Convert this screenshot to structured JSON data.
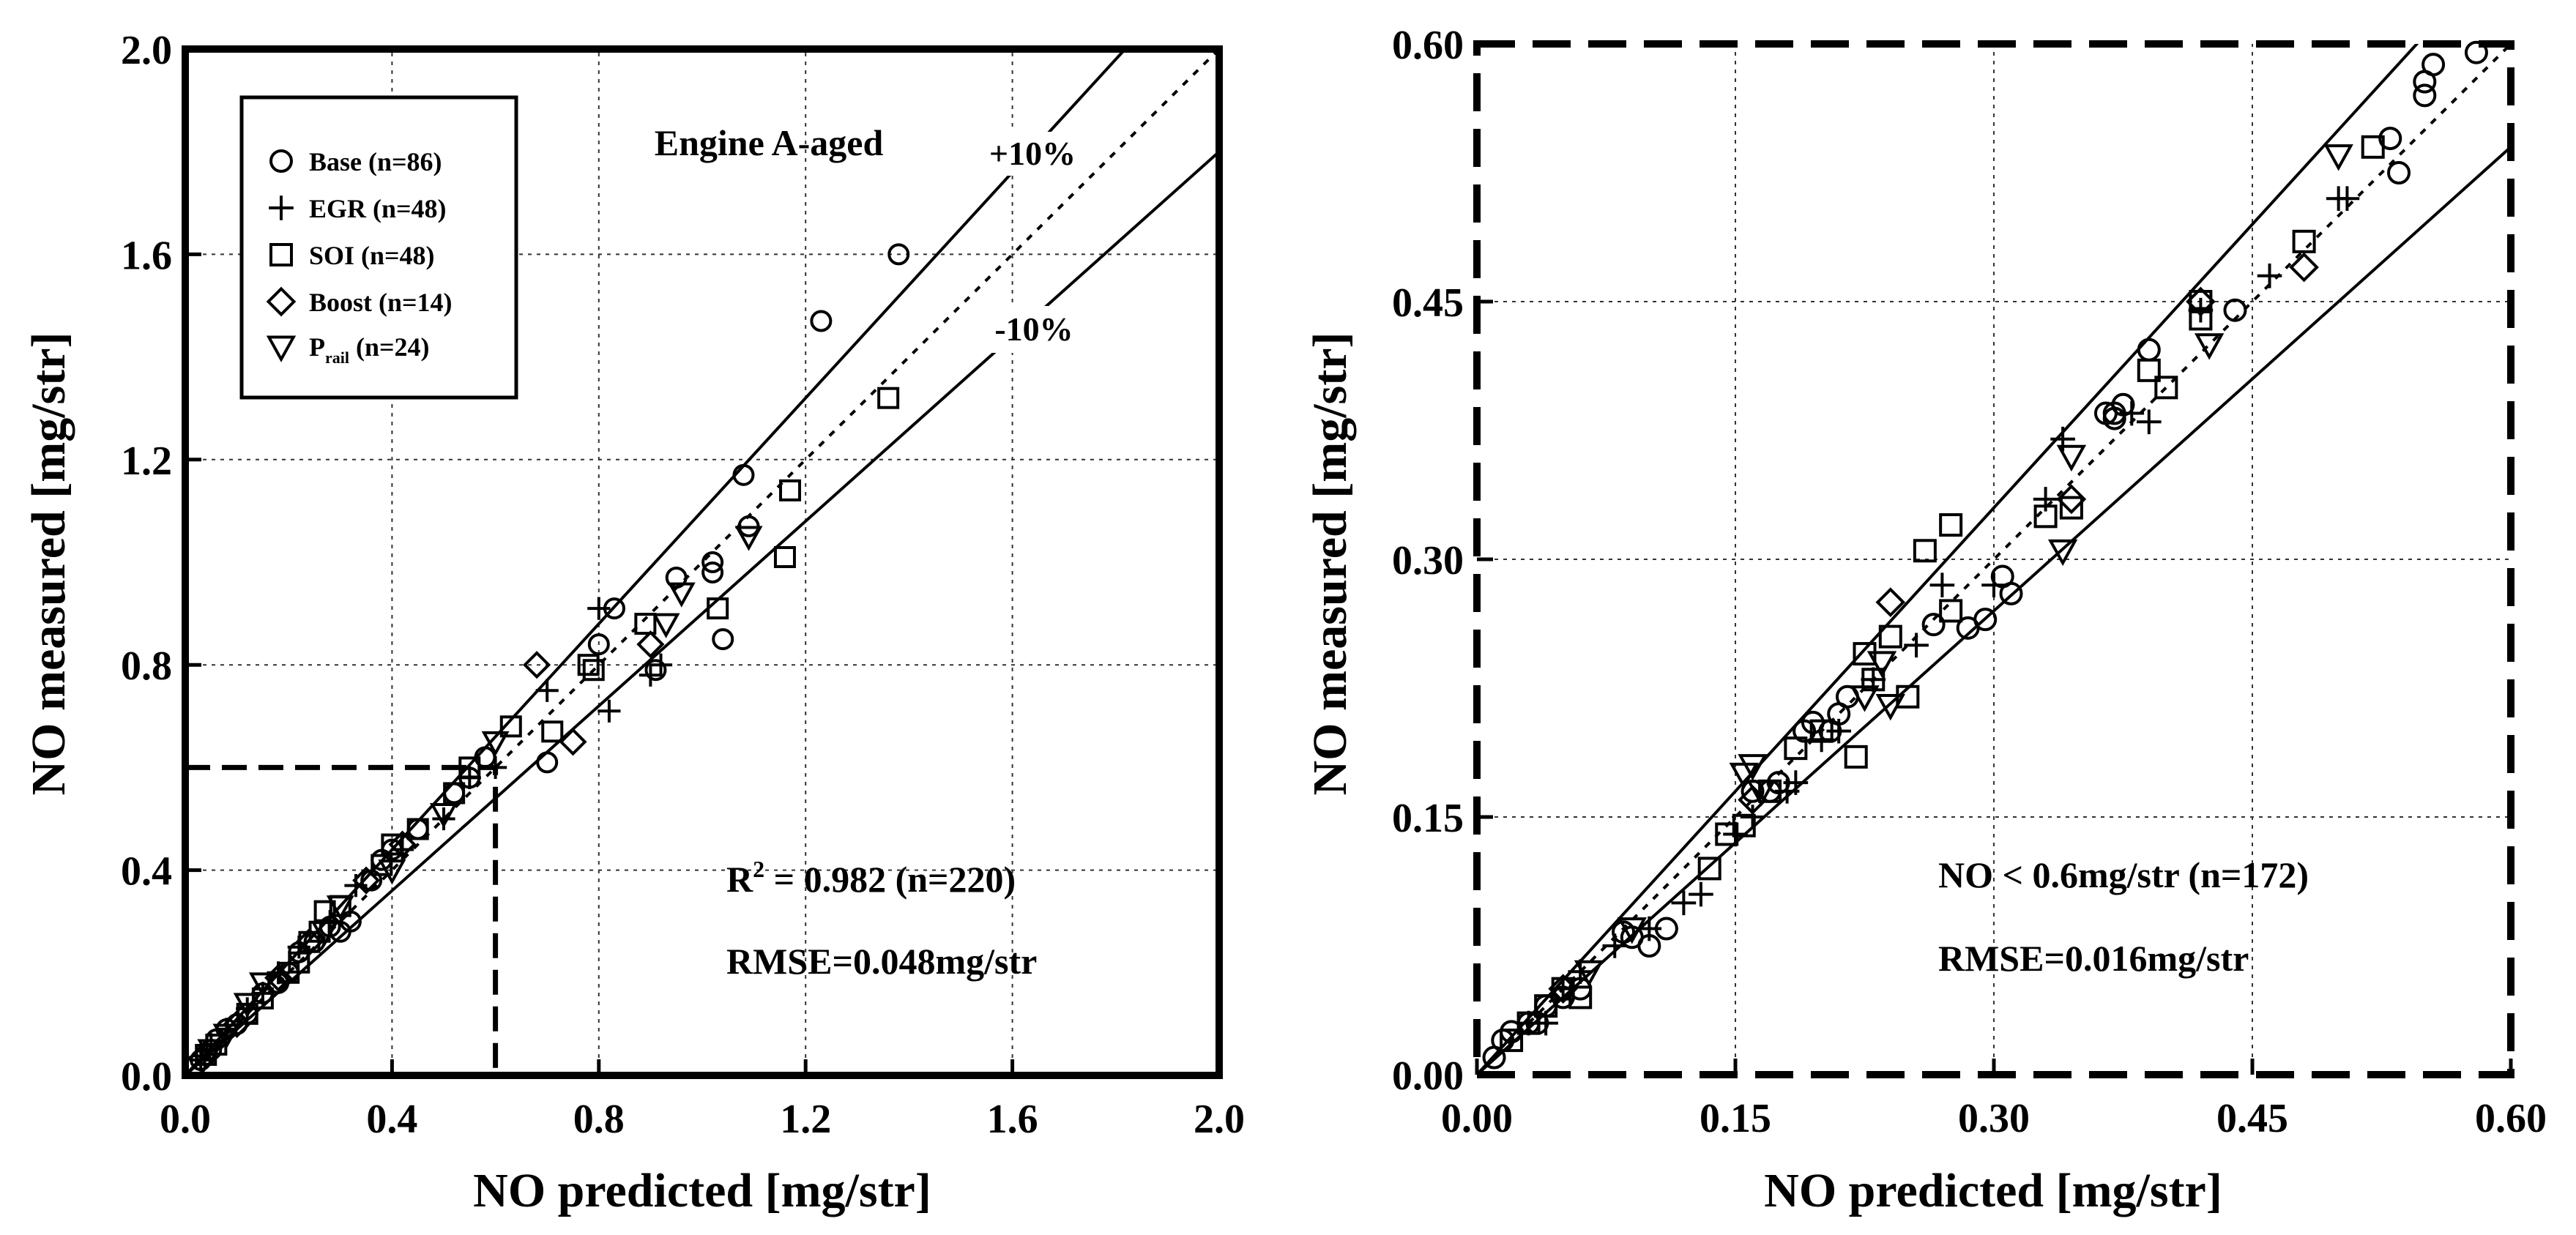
{
  "chart_data": [
    {
      "type": "scatter",
      "title": "Engine A-aged",
      "xlabel": "NO predicted [mg/str]",
      "ylabel": "NO measured [mg/str]",
      "xlim": [
        0.0,
        2.0
      ],
      "ylim": [
        0.0,
        2.0
      ],
      "xticks": [
        "0.0",
        "0.4",
        "0.8",
        "1.2",
        "1.6",
        "2.0"
      ],
      "yticks": [
        "0.0",
        "0.4",
        "0.8",
        "1.2",
        "1.6",
        "2.0"
      ],
      "grid": true,
      "legend_position": "top-left",
      "line_labels": {
        "plus10": "+10%",
        "minus10": "-10%"
      },
      "annotation_r2_prefix": "R",
      "annotation_r2_sup": "2",
      "annotation_r2_suffix": " = 0.982 (n=220)",
      "annotation_rmse": "RMSE=0.048mg/str",
      "zoom_box": {
        "x": [
          0.0,
          0.6
        ],
        "y": [
          0.0,
          0.6
        ]
      },
      "series": [
        {
          "name": "Base (n=86)",
          "marker": "circle",
          "points": [
            [
              1.38,
              1.6
            ],
            [
              1.23,
              1.47
            ],
            [
              1.08,
              1.17
            ],
            [
              1.09,
              1.07
            ],
            [
              1.04,
              0.85
            ],
            [
              0.95,
              0.97
            ],
            [
              0.83,
              0.91
            ],
            [
              0.8,
              0.84
            ],
            [
              0.7,
              0.61
            ],
            [
              0.58,
              0.62
            ],
            [
              0.52,
              0.55
            ],
            [
              0.55,
              0.58
            ],
            [
              0.45,
              0.48
            ],
            [
              0.4,
              0.44
            ],
            [
              0.38,
              0.42
            ],
            [
              0.36,
              0.38
            ],
            [
              0.32,
              0.3
            ],
            [
              0.3,
              0.28
            ],
            [
              0.28,
              0.29
            ],
            [
              0.25,
              0.26
            ],
            [
              0.22,
              0.24
            ],
            [
              0.2,
              0.2
            ],
            [
              0.18,
              0.18
            ],
            [
              0.15,
              0.16
            ],
            [
              0.12,
              0.12
            ],
            [
              0.1,
              0.1
            ],
            [
              0.08,
              0.09
            ],
            [
              0.06,
              0.07
            ],
            [
              0.05,
              0.05
            ],
            [
              0.04,
              0.04
            ],
            [
              0.03,
              0.03
            ],
            [
              0.02,
              0.02
            ],
            [
              1.02,
              0.98
            ],
            [
              1.02,
              1.0
            ],
            [
              0.91,
              0.79
            ]
          ]
        },
        {
          "name": "EGR (n=48)",
          "marker": "plus",
          "points": [
            [
              0.8,
              0.91
            ],
            [
              0.7,
              0.75
            ],
            [
              0.82,
              0.71
            ],
            [
              0.9,
              0.78
            ],
            [
              0.92,
              0.8
            ],
            [
              0.6,
              0.6
            ],
            [
              0.5,
              0.5
            ],
            [
              0.42,
              0.44
            ],
            [
              0.33,
              0.37
            ],
            [
              0.28,
              0.3
            ],
            [
              0.22,
              0.25
            ],
            [
              0.18,
              0.2
            ],
            [
              0.15,
              0.16
            ],
            [
              0.12,
              0.13
            ],
            [
              0.08,
              0.09
            ],
            [
              0.05,
              0.06
            ],
            [
              0.03,
              0.03
            ],
            [
              0.55,
              0.58
            ]
          ]
        },
        {
          "name": "SOI (n=48)",
          "marker": "square",
          "points": [
            [
              1.36,
              1.32
            ],
            [
              1.17,
              1.14
            ],
            [
              1.16,
              1.01
            ],
            [
              1.03,
              0.91
            ],
            [
              0.89,
              0.88
            ],
            [
              0.78,
              0.8
            ],
            [
              0.79,
              0.79
            ],
            [
              0.71,
              0.67
            ],
            [
              0.63,
              0.68
            ],
            [
              0.55,
              0.6
            ],
            [
              0.52,
              0.55
            ],
            [
              0.45,
              0.48
            ],
            [
              0.4,
              0.45
            ],
            [
              0.38,
              0.41
            ],
            [
              0.3,
              0.33
            ],
            [
              0.27,
              0.32
            ],
            [
              0.26,
              0.28
            ],
            [
              0.24,
              0.26
            ],
            [
              0.22,
              0.22
            ],
            [
              0.2,
              0.2
            ],
            [
              0.15,
              0.15
            ],
            [
              0.12,
              0.12
            ],
            [
              0.06,
              0.06
            ],
            [
              0.04,
              0.04
            ]
          ]
        },
        {
          "name": "Boost (n=14)",
          "marker": "diamond",
          "points": [
            [
              0.68,
              0.8
            ],
            [
              0.75,
              0.65
            ],
            [
              0.9,
              0.84
            ],
            [
              0.42,
              0.45
            ],
            [
              0.35,
              0.38
            ],
            [
              0.24,
              0.26
            ],
            [
              0.18,
              0.19
            ],
            [
              0.1,
              0.1
            ]
          ]
        },
        {
          "name": "Prail (n=24)",
          "name_base": "P",
          "name_sub": "rail",
          "name_rest": " (n=24)",
          "marker": "triangle-down",
          "points": [
            [
              1.09,
              1.05
            ],
            [
              0.96,
              0.94
            ],
            [
              0.93,
              0.88
            ],
            [
              0.6,
              0.65
            ],
            [
              0.5,
              0.51
            ],
            [
              0.4,
              0.4
            ],
            [
              0.3,
              0.33
            ],
            [
              0.27,
              0.28
            ],
            [
              0.15,
              0.18
            ],
            [
              0.12,
              0.14
            ],
            [
              0.08,
              0.08
            ],
            [
              0.05,
              0.05
            ]
          ]
        }
      ]
    },
    {
      "type": "scatter",
      "xlabel": "NO predicted [mg/str]",
      "ylabel": "NO measured [mg/str]",
      "xlim": [
        0.0,
        0.6
      ],
      "ylim": [
        0.0,
        0.6
      ],
      "xticks": [
        "0.00",
        "0.15",
        "0.30",
        "0.45",
        "0.60"
      ],
      "yticks": [
        "0.00",
        "0.15",
        "0.30",
        "0.45",
        "0.60"
      ],
      "grid": true,
      "annotation_subset": "NO < 0.6mg/str (n=172)",
      "annotation_rmse": "RMSE=0.016mg/str",
      "series": [
        {
          "name": "Base",
          "marker": "circle",
          "points": [
            [
              0.58,
              0.595
            ],
            [
              0.555,
              0.588
            ],
            [
              0.55,
              0.578
            ],
            [
              0.55,
              0.57
            ],
            [
              0.53,
              0.545
            ],
            [
              0.535,
              0.525
            ],
            [
              0.44,
              0.445
            ],
            [
              0.39,
              0.422
            ],
            [
              0.375,
              0.39
            ],
            [
              0.37,
              0.385
            ],
            [
              0.37,
              0.382
            ],
            [
              0.365,
              0.385
            ],
            [
              0.31,
              0.28
            ],
            [
              0.305,
              0.29
            ],
            [
              0.295,
              0.265
            ],
            [
              0.285,
              0.26
            ],
            [
              0.265,
              0.262
            ],
            [
              0.215,
              0.22
            ],
            [
              0.21,
              0.21
            ],
            [
              0.205,
              0.2
            ],
            [
              0.195,
              0.205
            ],
            [
              0.19,
              0.2
            ],
            [
              0.175,
              0.17
            ],
            [
              0.17,
              0.165
            ],
            [
              0.16,
              0.165
            ],
            [
              0.11,
              0.085
            ],
            [
              0.1,
              0.075
            ],
            [
              0.09,
              0.08
            ],
            [
              0.085,
              0.083
            ],
            [
              0.06,
              0.05
            ],
            [
              0.05,
              0.045
            ],
            [
              0.04,
              0.04
            ],
            [
              0.03,
              0.03
            ],
            [
              0.02,
              0.025
            ],
            [
              0.015,
              0.02
            ],
            [
              0.01,
              0.01
            ],
            [
              0.035,
              0.03
            ]
          ]
        },
        {
          "name": "EGR",
          "marker": "plus",
          "points": [
            [
              0.5,
              0.51
            ],
            [
              0.505,
              0.51
            ],
            [
              0.46,
              0.465
            ],
            [
              0.42,
              0.445
            ],
            [
              0.38,
              0.385
            ],
            [
              0.39,
              0.38
            ],
            [
              0.34,
              0.37
            ],
            [
              0.33,
              0.335
            ],
            [
              0.3,
              0.285
            ],
            [
              0.27,
              0.285
            ],
            [
              0.255,
              0.25
            ],
            [
              0.23,
              0.23
            ],
            [
              0.21,
              0.2
            ],
            [
              0.2,
              0.195
            ],
            [
              0.185,
              0.17
            ],
            [
              0.18,
              0.165
            ],
            [
              0.16,
              0.15
            ],
            [
              0.15,
              0.14
            ],
            [
              0.13,
              0.105
            ],
            [
              0.12,
              0.1
            ],
            [
              0.1,
              0.085
            ],
            [
              0.08,
              0.075
            ],
            [
              0.06,
              0.06
            ],
            [
              0.05,
              0.05
            ],
            [
              0.04,
              0.03
            ],
            [
              0.03,
              0.03
            ]
          ]
        },
        {
          "name": "SOI",
          "marker": "square",
          "points": [
            [
              0.52,
              0.54
            ],
            [
              0.48,
              0.485
            ],
            [
              0.42,
              0.45
            ],
            [
              0.42,
              0.44
            ],
            [
              0.4,
              0.4
            ],
            [
              0.39,
              0.41
            ],
            [
              0.345,
              0.33
            ],
            [
              0.33,
              0.325
            ],
            [
              0.275,
              0.32
            ],
            [
              0.26,
              0.305
            ],
            [
              0.275,
              0.27
            ],
            [
              0.25,
              0.22
            ],
            [
              0.24,
              0.255
            ],
            [
              0.225,
              0.245
            ],
            [
              0.23,
              0.23
            ],
            [
              0.22,
              0.185
            ],
            [
              0.2,
              0.2
            ],
            [
              0.185,
              0.19
            ],
            [
              0.17,
              0.165
            ],
            [
              0.155,
              0.145
            ],
            [
              0.145,
              0.14
            ],
            [
              0.135,
              0.12
            ],
            [
              0.06,
              0.045
            ],
            [
              0.05,
              0.05
            ],
            [
              0.04,
              0.04
            ],
            [
              0.03,
              0.03
            ],
            [
              0.02,
              0.02
            ]
          ]
        },
        {
          "name": "Boost",
          "marker": "diamond",
          "points": [
            [
              0.48,
              0.47
            ],
            [
              0.42,
              0.45
            ],
            [
              0.345,
              0.335
            ],
            [
              0.24,
              0.275
            ],
            [
              0.16,
              0.16
            ],
            [
              0.05,
              0.05
            ]
          ]
        },
        {
          "name": "Prail",
          "marker": "triangle-down",
          "points": [
            [
              0.5,
              0.535
            ],
            [
              0.425,
              0.425
            ],
            [
              0.345,
              0.36
            ],
            [
              0.34,
              0.305
            ],
            [
              0.235,
              0.24
            ],
            [
              0.225,
              0.22
            ],
            [
              0.24,
              0.215
            ],
            [
              0.165,
              0.165
            ],
            [
              0.16,
              0.18
            ],
            [
              0.155,
              0.175
            ],
            [
              0.09,
              0.085
            ],
            [
              0.065,
              0.06
            ]
          ]
        }
      ]
    }
  ]
}
